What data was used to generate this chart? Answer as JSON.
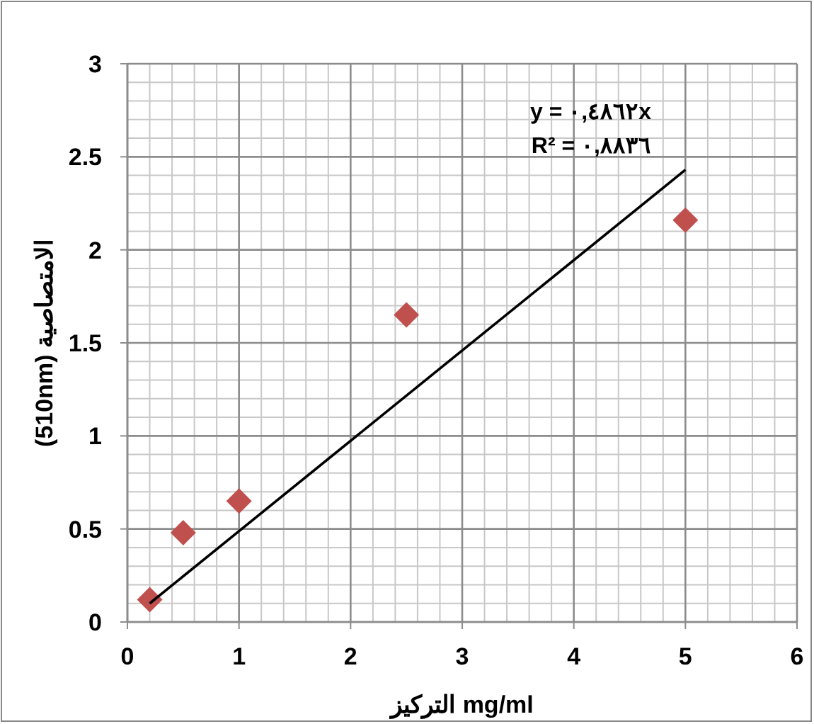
{
  "chart_data": {
    "type": "scatter",
    "xlabel": "التركيز mg/ml",
    "ylabel": "(510nm) الامتصاصية",
    "xlim": [
      0,
      6
    ],
    "ylim": [
      0,
      3
    ],
    "xticks": [
      0,
      1,
      2,
      3,
      4,
      5,
      6
    ],
    "yticks": [
      0,
      0.5,
      1,
      1.5,
      2,
      2.5,
      3
    ],
    "grid": true,
    "series": [
      {
        "color": "#c0504d",
        "marker": "diamond",
        "x": [
          0.2,
          0.5,
          1,
          2.5,
          5
        ],
        "values": [
          0.12,
          0.48,
          0.65,
          1.65,
          2.16
        ]
      },
      {
        "type": "line",
        "color": "#000000",
        "line_style": "solid",
        "x": [
          0.2,
          5
        ],
        "values": [
          0.1,
          2.43
        ]
      }
    ],
    "annotations": [
      "y = ٠,٤٨٦٢x",
      "R² = ٠,٨٨٣٦"
    ]
  }
}
